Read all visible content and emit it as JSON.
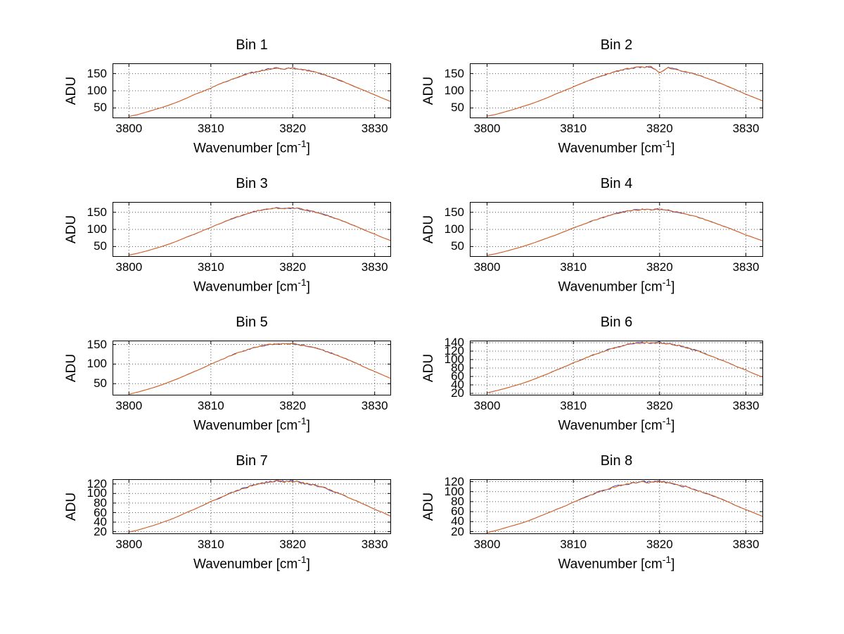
{
  "axis": {
    "ylabel": "ADU",
    "xlabel_pre": "Wavenumber [cm",
    "xlabel_sup": "-1",
    "xlabel_post": "]"
  },
  "style": {
    "background": "#ffffff",
    "line_colors": [
      "#3344bb",
      "#e8650f"
    ],
    "grid_color": "#555555",
    "axis_color": "#000000",
    "text_color": "#000000",
    "noise": 2.2
  },
  "chart_data": [
    {
      "type": "line",
      "title": "Bin 1",
      "xlim": [
        3798,
        3832
      ],
      "ylim": [
        20,
        180
      ],
      "xticks": [
        3800,
        3810,
        3820,
        3830
      ],
      "yticks": [
        50,
        100,
        150
      ],
      "x_start": 3800,
      "x_step": 1,
      "values": [
        25,
        30,
        37,
        44,
        51,
        59,
        68,
        78,
        89,
        98,
        108,
        119,
        128,
        137,
        146,
        153,
        158,
        163,
        166,
        164,
        166,
        163,
        158,
        152,
        146,
        137,
        128,
        118,
        108,
        98,
        88,
        78,
        68
      ]
    },
    {
      "type": "line",
      "title": "Bin 2",
      "xlim": [
        3798,
        3832
      ],
      "ylim": [
        20,
        180
      ],
      "xticks": [
        3800,
        3810,
        3820,
        3830
      ],
      "yticks": [
        50,
        100,
        150
      ],
      "x_start": 3800,
      "x_step": 1,
      "values": [
        26,
        31,
        38,
        45,
        53,
        61,
        70,
        80,
        91,
        101,
        111,
        122,
        132,
        141,
        149,
        157,
        163,
        167,
        169,
        170,
        152,
        167,
        162,
        156,
        149,
        141,
        132,
        122,
        112,
        101,
        90,
        80,
        70
      ]
    },
    {
      "type": "line",
      "title": "Bin 3",
      "xlim": [
        3798,
        3832
      ],
      "ylim": [
        20,
        180
      ],
      "xticks": [
        3800,
        3810,
        3820,
        3830
      ],
      "yticks": [
        50,
        100,
        150
      ],
      "x_start": 3800,
      "x_step": 1,
      "values": [
        25,
        30,
        36,
        43,
        50,
        58,
        67,
        77,
        86,
        96,
        106,
        116,
        126,
        135,
        142,
        150,
        156,
        160,
        162,
        161,
        163,
        159,
        155,
        149,
        142,
        134,
        125,
        116,
        106,
        96,
        86,
        76,
        67
      ]
    },
    {
      "type": "line",
      "title": "Bin 4",
      "xlim": [
        3798,
        3832
      ],
      "ylim": [
        20,
        180
      ],
      "xticks": [
        3800,
        3810,
        3820,
        3830
      ],
      "yticks": [
        50,
        100,
        150
      ],
      "x_start": 3800,
      "x_step": 1,
      "values": [
        24,
        29,
        35,
        42,
        49,
        57,
        66,
        75,
        84,
        94,
        104,
        113,
        123,
        131,
        139,
        146,
        152,
        156,
        158,
        157,
        159,
        155,
        151,
        145,
        139,
        131,
        122,
        113,
        104,
        94,
        84,
        75,
        66
      ]
    },
    {
      "type": "line",
      "title": "Bin 5",
      "xlim": [
        3798,
        3832
      ],
      "ylim": [
        20,
        160
      ],
      "xticks": [
        3800,
        3810,
        3820,
        3830
      ],
      "yticks": [
        50,
        100,
        150
      ],
      "x_start": 3800,
      "x_step": 1,
      "values": [
        23,
        28,
        34,
        40,
        47,
        55,
        63,
        72,
        81,
        90,
        100,
        109,
        118,
        126,
        134,
        140,
        146,
        150,
        152,
        151,
        153,
        149,
        145,
        140,
        133,
        126,
        118,
        109,
        100,
        90,
        81,
        72,
        63
      ]
    },
    {
      "type": "line",
      "title": "Bin 6",
      "xlim": [
        3798,
        3832
      ],
      "ylim": [
        15,
        145
      ],
      "xticks": [
        3800,
        3810,
        3820,
        3830
      ],
      "yticks": [
        20,
        40,
        60,
        80,
        100,
        120,
        140
      ],
      "x_start": 3800,
      "x_step": 1,
      "values": [
        21,
        26,
        31,
        37,
        43,
        50,
        58,
        66,
        75,
        83,
        92,
        100,
        109,
        116,
        123,
        129,
        134,
        138,
        140,
        139,
        141,
        137,
        134,
        129,
        123,
        116,
        108,
        100,
        92,
        83,
        75,
        66,
        58
      ]
    },
    {
      "type": "line",
      "title": "Bin 7",
      "xlim": [
        3798,
        3832
      ],
      "ylim": [
        15,
        130
      ],
      "xticks": [
        3800,
        3810,
        3820,
        3830
      ],
      "yticks": [
        20,
        40,
        60,
        80,
        100,
        120
      ],
      "x_start": 3800,
      "x_step": 1,
      "values": [
        19,
        23,
        28,
        33,
        39,
        45,
        52,
        60,
        67,
        75,
        83,
        90,
        98,
        105,
        111,
        116,
        121,
        124,
        126,
        125,
        127,
        123,
        120,
        116,
        111,
        104,
        98,
        90,
        83,
        75,
        67,
        60,
        52
      ]
    },
    {
      "type": "line",
      "title": "Bin 8",
      "xlim": [
        3798,
        3832
      ],
      "ylim": [
        15,
        125
      ],
      "xticks": [
        3800,
        3810,
        3820,
        3830
      ],
      "yticks": [
        20,
        40,
        60,
        80,
        100,
        120
      ],
      "x_start": 3800,
      "x_step": 1,
      "values": [
        18,
        22,
        27,
        32,
        37,
        43,
        50,
        57,
        64,
        71,
        79,
        86,
        93,
        100,
        105,
        111,
        115,
        118,
        120,
        119,
        121,
        117,
        114,
        110,
        105,
        99,
        93,
        86,
        79,
        71,
        64,
        57,
        50
      ]
    }
  ]
}
